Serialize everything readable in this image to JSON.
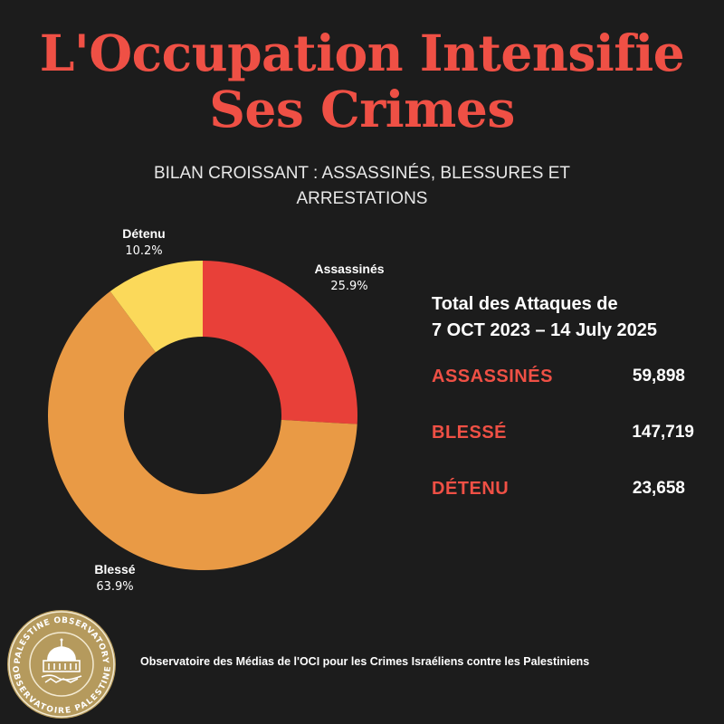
{
  "title_line1": "L'Occupation Intensifie",
  "title_line2": "Ses Crimes",
  "subtitle_line1": "BILAN CROISSANT : ASSASSINÉS, BLESSURES ET",
  "subtitle_line2": "ARRESTATIONS",
  "chart_data": {
    "type": "pie",
    "variant": "donut",
    "categories": [
      "Assassinés",
      "Blessé",
      "Détenu"
    ],
    "values": [
      25.9,
      63.9,
      10.2
    ],
    "value_labels": [
      "25.9%",
      "63.9%",
      "10.2%"
    ],
    "colors": [
      "#e84039",
      "#e99a45",
      "#fbd95a"
    ],
    "title": "",
    "legend": "none"
  },
  "panel": {
    "heading_line1": "Total des Attaques de",
    "heading_line2": "7 OCT 2023 – 14 July 2025",
    "stats": [
      {
        "label": "ASSASSINÉS",
        "value": "59,898"
      },
      {
        "label": "BLESSÉ",
        "value": "147,719"
      },
      {
        "label": "DÉTENU",
        "value": "23,658"
      }
    ]
  },
  "logo": {
    "top_text": "PALESTINE OBSERVATORY",
    "bottom_text": "OBSERVATOIRE PALESTINE"
  },
  "footer": "Observatoire des Médias de l'OCI pour les Crimes Israéliens contre les Palestiniens",
  "colors": {
    "background": "#1c1c1c",
    "accent": "#ef5045",
    "gold": "#b59a5d"
  }
}
